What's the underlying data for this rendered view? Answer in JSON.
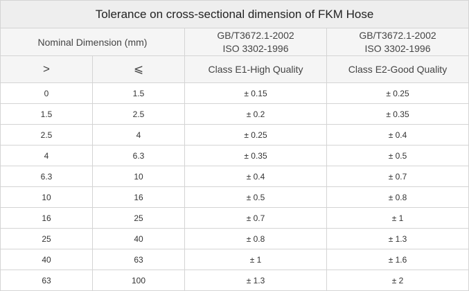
{
  "table": {
    "title": "Tolerance on cross-sectional dimension of FKM Hose",
    "nominal_label": "Nominal Dimension (mm)",
    "standards": [
      {
        "line1": "GB/T3672.1-2002",
        "line2": "ISO 3302-1996"
      },
      {
        "line1": "GB/T3672.1-2002",
        "line2": "ISO 3302-1996"
      }
    ],
    "sub_headers": {
      "greater_than": ">",
      "less_equal": "⩽",
      "class_e1": "Class E1-High Quality",
      "class_e2": "Class E2-Good Quality"
    },
    "rows": [
      {
        "gt": "0",
        "le": "1.5",
        "e1": "± 0.15",
        "e2": "± 0.25"
      },
      {
        "gt": "1.5",
        "le": "2.5",
        "e1": "± 0.2",
        "e2": "± 0.35"
      },
      {
        "gt": "2.5",
        "le": "4",
        "e1": "± 0.25",
        "e2": "± 0.4"
      },
      {
        "gt": "4",
        "le": "6.3",
        "e1": "± 0.35",
        "e2": "± 0.5"
      },
      {
        "gt": "6.3",
        "le": "10",
        "e1": "± 0.4",
        "e2": "± 0.7"
      },
      {
        "gt": "10",
        "le": "16",
        "e1": "± 0.5",
        "e2": "± 0.8"
      },
      {
        "gt": "16",
        "le": "25",
        "e1": "± 0.7",
        "e2": "± 1"
      },
      {
        "gt": "25",
        "le": "40",
        "e1": "± 0.8",
        "e2": "± 1.3"
      },
      {
        "gt": "40",
        "le": "63",
        "e1": "± 1",
        "e2": "± 1.6"
      },
      {
        "gt": "63",
        "le": "100",
        "e1": "± 1.3",
        "e2": "± 2"
      }
    ]
  }
}
